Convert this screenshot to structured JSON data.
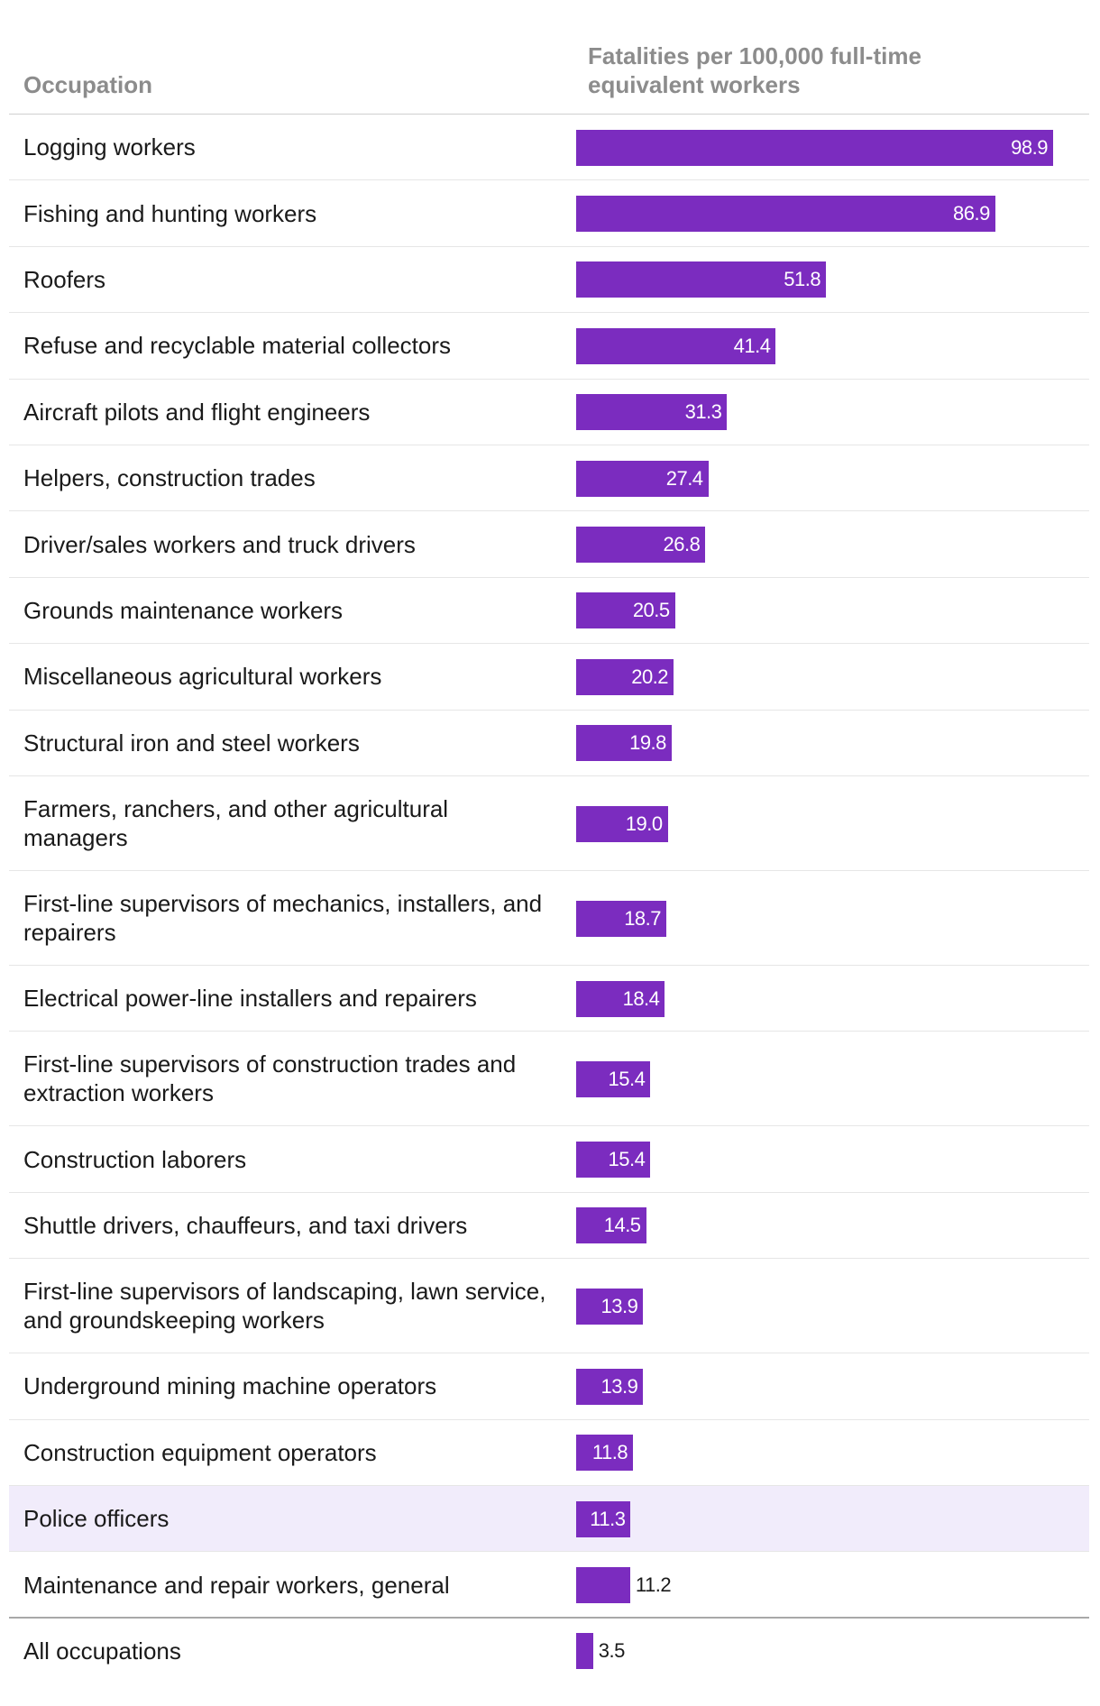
{
  "chart_data": {
    "type": "bar",
    "orientation": "horizontal",
    "column_headers": {
      "occupation": "Occupation",
      "value": "Fatalities per 100,000 full-time equivalent workers"
    },
    "categories": [
      "Logging workers",
      "Fishing and hunting workers",
      "Roofers",
      "Refuse and recyclable material collectors",
      "Aircraft pilots and flight engineers",
      "Helpers, construction trades",
      "Driver/sales workers and truck drivers",
      "Grounds maintenance workers",
      "Miscellaneous agricultural workers",
      "Structural iron and steel workers",
      "Farmers, ranchers, and other agricultural managers",
      "First-line supervisors of mechanics, installers, and repairers",
      "Electrical power-line installers and repairers",
      "First-line supervisors of construction trades and extraction workers",
      "Construction laborers",
      "Shuttle drivers, chauffeurs, and taxi drivers",
      "First-line supervisors of landscaping, lawn service, and groundskeeping workers",
      "Underground mining machine operators",
      "Construction equipment operators",
      "Police officers",
      "Maintenance and repair workers, general"
    ],
    "value_labels": [
      "98.9",
      "86.9",
      "51.8",
      "41.4",
      "31.3",
      "27.4",
      "26.8",
      "20.5",
      "20.2",
      "19.8",
      "19.0",
      "18.7",
      "18.4",
      "15.4",
      "15.4",
      "14.5",
      "13.9",
      "13.9",
      "11.8",
      "11.3",
      "11.2"
    ],
    "values": [
      98.9,
      86.9,
      51.8,
      41.4,
      31.3,
      27.4,
      26.8,
      20.5,
      20.2,
      19.8,
      19.0,
      18.7,
      18.4,
      15.4,
      15.4,
      14.5,
      13.9,
      13.9,
      11.8,
      11.3,
      11.2
    ],
    "highlighted_category": "Police officers",
    "total": {
      "category": "All occupations",
      "value": 3.5,
      "value_label": "3.5"
    },
    "xlim": [
      0,
      98.9
    ],
    "bar_color": "#7b2cbf",
    "highlight_row_color": "#f1ecfb"
  }
}
